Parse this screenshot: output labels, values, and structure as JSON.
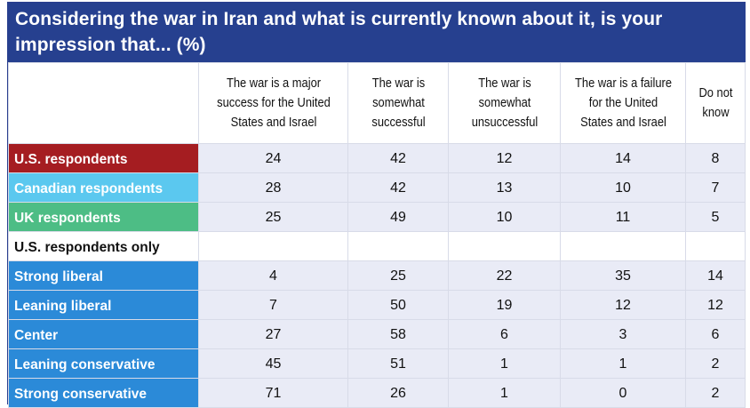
{
  "chart_data": {
    "type": "table",
    "title": "Considering the war in Iran and what is currently known about it, is your impression that... (%)",
    "columns": [
      "The war is a major success for the United States and Israel",
      "The war is somewhat successful",
      "The war is somewhat unsuccessful",
      "The war is a failure for the United States and Israel",
      "Do not know"
    ],
    "rows": [
      {
        "label": "U.S. respondents",
        "color": "#a51d21",
        "values": [
          24,
          42,
          12,
          14,
          8
        ]
      },
      {
        "label": "Canadian respondents",
        "color": "#5bc8ef",
        "values": [
          28,
          42,
          13,
          10,
          7
        ]
      },
      {
        "label": "UK respondents",
        "color": "#4dbd85",
        "values": [
          25,
          49,
          10,
          11,
          5
        ]
      },
      {
        "label": "U.S. respondents only",
        "section": true,
        "values": []
      },
      {
        "label": "Strong liberal",
        "color": "#2b8ad8",
        "values": [
          4,
          25,
          22,
          35,
          14
        ]
      },
      {
        "label": "Leaning liberal",
        "color": "#2b8ad8",
        "values": [
          7,
          50,
          19,
          12,
          12
        ]
      },
      {
        "label": "Center",
        "color": "#2b8ad8",
        "values": [
          27,
          58,
          6,
          3,
          6
        ]
      },
      {
        "label": "Leaning conservative",
        "color": "#2b8ad8",
        "values": [
          45,
          51,
          1,
          1,
          2
        ]
      },
      {
        "label": "Strong conservative",
        "color": "#2b8ad8",
        "values": [
          71,
          26,
          1,
          0,
          2
        ]
      }
    ]
  },
  "colors": {
    "title_bg": "#26408f",
    "value_bg": "#e9ebf6"
  }
}
